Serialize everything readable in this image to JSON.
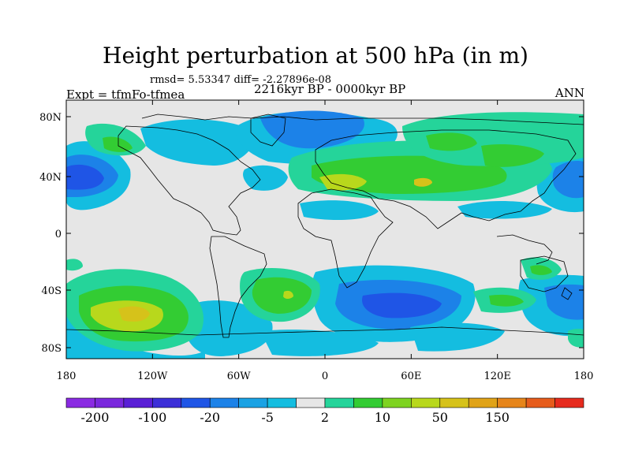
{
  "title": "Height perturbation at 500 hPa (in m)",
  "stats_line": "rmsd= 5.53347 diff= -2.27896e-08",
  "period_label": "2216kyr BP - 0000kyr BP",
  "experiment_label": "Expt = tfmFo-tfmea",
  "season_label": "ANN",
  "axes": {
    "lat_ticks": [
      "80N",
      "40N",
      "0",
      "40S",
      "80S"
    ],
    "lon_ticks": [
      "180",
      "120W",
      "60W",
      "0",
      "60E",
      "120E",
      "180"
    ]
  },
  "colorbar": {
    "labels": [
      "-200",
      "-100",
      "-20",
      "-5",
      "2",
      "10",
      "50",
      "150"
    ],
    "colors": [
      "#8a2be2",
      "#7a28dd",
      "#5a1fd6",
      "#3c2fd8",
      "#1f55e6",
      "#1c82e8",
      "#1aa2e4",
      "#14bde0",
      "#e6e6e6",
      "#25d49a",
      "#33cc33",
      "#7ed321",
      "#b8d81c",
      "#d6c21a",
      "#e0a318",
      "#e6851a",
      "#e65c1c",
      "#e62b1e"
    ]
  },
  "map_data": {
    "projection": "cylindrical-equidistant",
    "lon_range": [
      -180,
      180
    ],
    "lat_range": [
      -90,
      90
    ],
    "field": "500 hPa geopotential height difference",
    "units": "m",
    "features": [
      {
        "name": "north-pacific-low",
        "lon": -170,
        "lat": 37,
        "level": "-20"
      },
      {
        "name": "north-atlantic-low",
        "lon": -40,
        "lat": 52,
        "level": "-5"
      },
      {
        "name": "eurasia-high",
        "lon": 30,
        "lat": 35,
        "level": "10"
      },
      {
        "name": "siberia-high",
        "lon": 75,
        "lat": 62,
        "level": "10"
      },
      {
        "name": "south-pacific-high",
        "lon": -130,
        "lat": -58,
        "level": "10"
      },
      {
        "name": "south-atlantic-high",
        "lon": -30,
        "lat": -42,
        "level": "10"
      },
      {
        "name": "southern-ocean-low",
        "lon": 45,
        "lat": -55,
        "level": "-20"
      },
      {
        "name": "south-indian-high",
        "lon": 85,
        "lat": -45,
        "level": "2"
      }
    ]
  }
}
